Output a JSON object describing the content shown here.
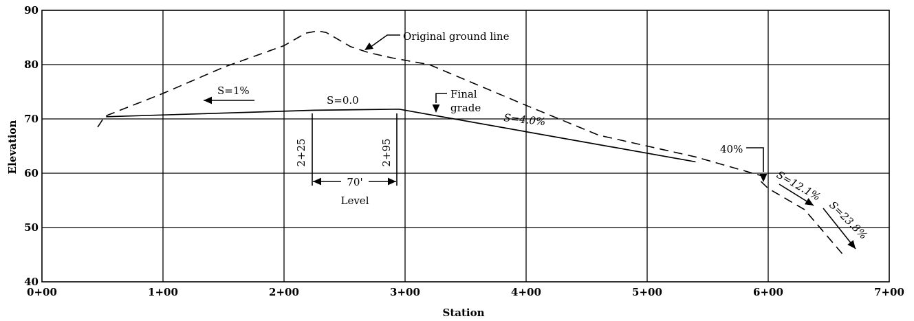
{
  "chart_data": {
    "type": "line",
    "title": "",
    "xlabel": "Station",
    "ylabel": "Elevation",
    "xlim": [
      0,
      700
    ],
    "ylim": [
      40,
      90
    ],
    "x_ticks": [
      0,
      100,
      200,
      300,
      400,
      500,
      600,
      700
    ],
    "x_tick_labels": [
      "0+00",
      "1+00",
      "2+00",
      "3+00",
      "4+00",
      "5+00",
      "6+00",
      "7+00"
    ],
    "y_ticks": [
      40,
      50,
      60,
      70,
      80,
      90
    ],
    "y_tick_labels": [
      "40",
      "50",
      "60",
      "70",
      "80",
      "90"
    ],
    "grid": true,
    "series": [
      {
        "name": "Original ground line",
        "style": "dashed",
        "x": [
          46,
          52,
          100,
          150,
          200,
          218,
          228,
          235,
          255,
          270,
          290,
          320,
          400,
          460,
          540,
          595
        ],
        "y": [
          68.5,
          70.5,
          74.7,
          79.5,
          83.5,
          85.8,
          86.2,
          85.9,
          83.3,
          82.2,
          81.2,
          80,
          72.5,
          67,
          63,
          59.5
        ]
      },
      {
        "name": "Final grade",
        "style": "solid",
        "x": [
          53,
          225,
          295,
          540
        ],
        "y": [
          70.4,
          71.6,
          71.8,
          62.1
        ]
      },
      {
        "name": "",
        "style": "dashed",
        "x": [
          594,
          600,
          630,
          663
        ],
        "y": [
          58.5,
          57.2,
          53.3,
          44.7
        ]
      }
    ],
    "annotations": {
      "ground_callout": "Original ground line",
      "final_grade_line1": "Final",
      "final_grade_line2": "grade",
      "slope_left": "S=1%",
      "slope_level": "S=0.0",
      "slope_main": "S=4.0%",
      "slope_1": "S=12.1%",
      "slope_2": "S=23.8%",
      "pct_40": "40%",
      "station_a": "2+25",
      "station_b": "2+95",
      "dimension": "70'",
      "level": "Level"
    }
  }
}
